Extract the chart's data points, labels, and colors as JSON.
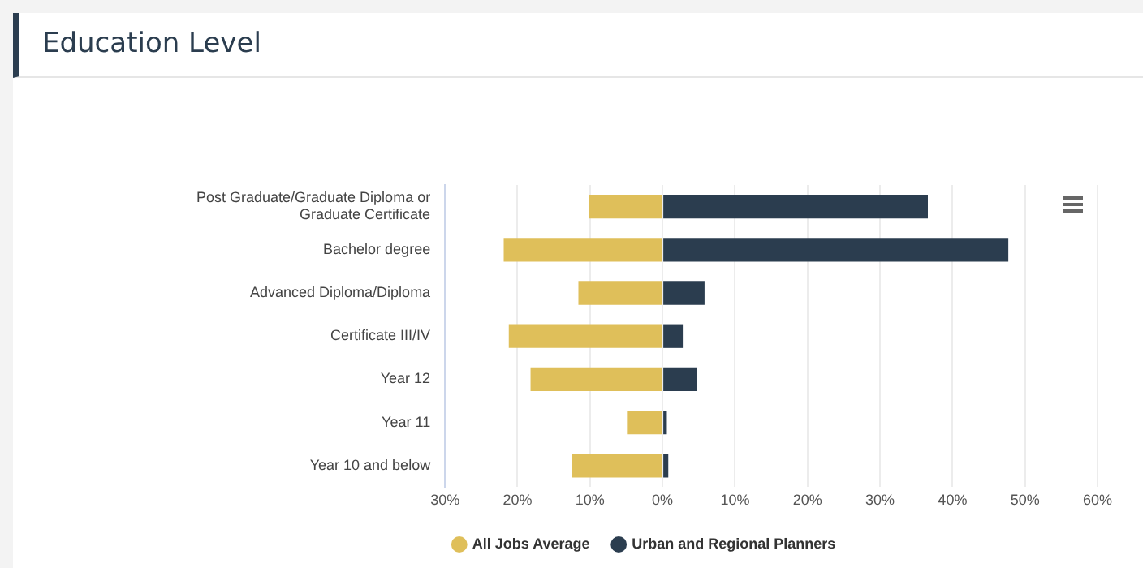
{
  "chart_data": {
    "type": "bar",
    "title": "Education Level",
    "orientation": "horizontal",
    "stacked": true,
    "categories": [
      "Post Graduate/Graduate Diploma or Graduate Certificate",
      "Bachelor degree",
      "Advanced Diploma/Diploma",
      "Certificate III/IV",
      "Year 12",
      "Year 11",
      "Year 10 and below"
    ],
    "series": [
      {
        "name": "All Jobs Average",
        "color": "#dfbf5a",
        "values": [
          -10.2,
          -21.9,
          -11.6,
          -21.2,
          -18.2,
          -4.9,
          -12.5
        ]
      },
      {
        "name": "Urban and Regional Planners",
        "color": "#2b3d4f",
        "values": [
          36.6,
          47.7,
          5.8,
          2.8,
          4.8,
          0.6,
          0.8
        ]
      }
    ],
    "xlim": [
      -30,
      60
    ],
    "xticks": [
      {
        "value": -30,
        "label": "30%"
      },
      {
        "value": -20,
        "label": "20%"
      },
      {
        "value": -10,
        "label": "10%"
      },
      {
        "value": 0,
        "label": "0%"
      },
      {
        "value": 10,
        "label": "10%"
      },
      {
        "value": 20,
        "label": "20%"
      },
      {
        "value": 30,
        "label": "30%"
      },
      {
        "value": 40,
        "label": "40%"
      },
      {
        "value": 50,
        "label": "50%"
      },
      {
        "value": 60,
        "label": "60%"
      }
    ],
    "grid": "x",
    "legend": "bottom"
  }
}
